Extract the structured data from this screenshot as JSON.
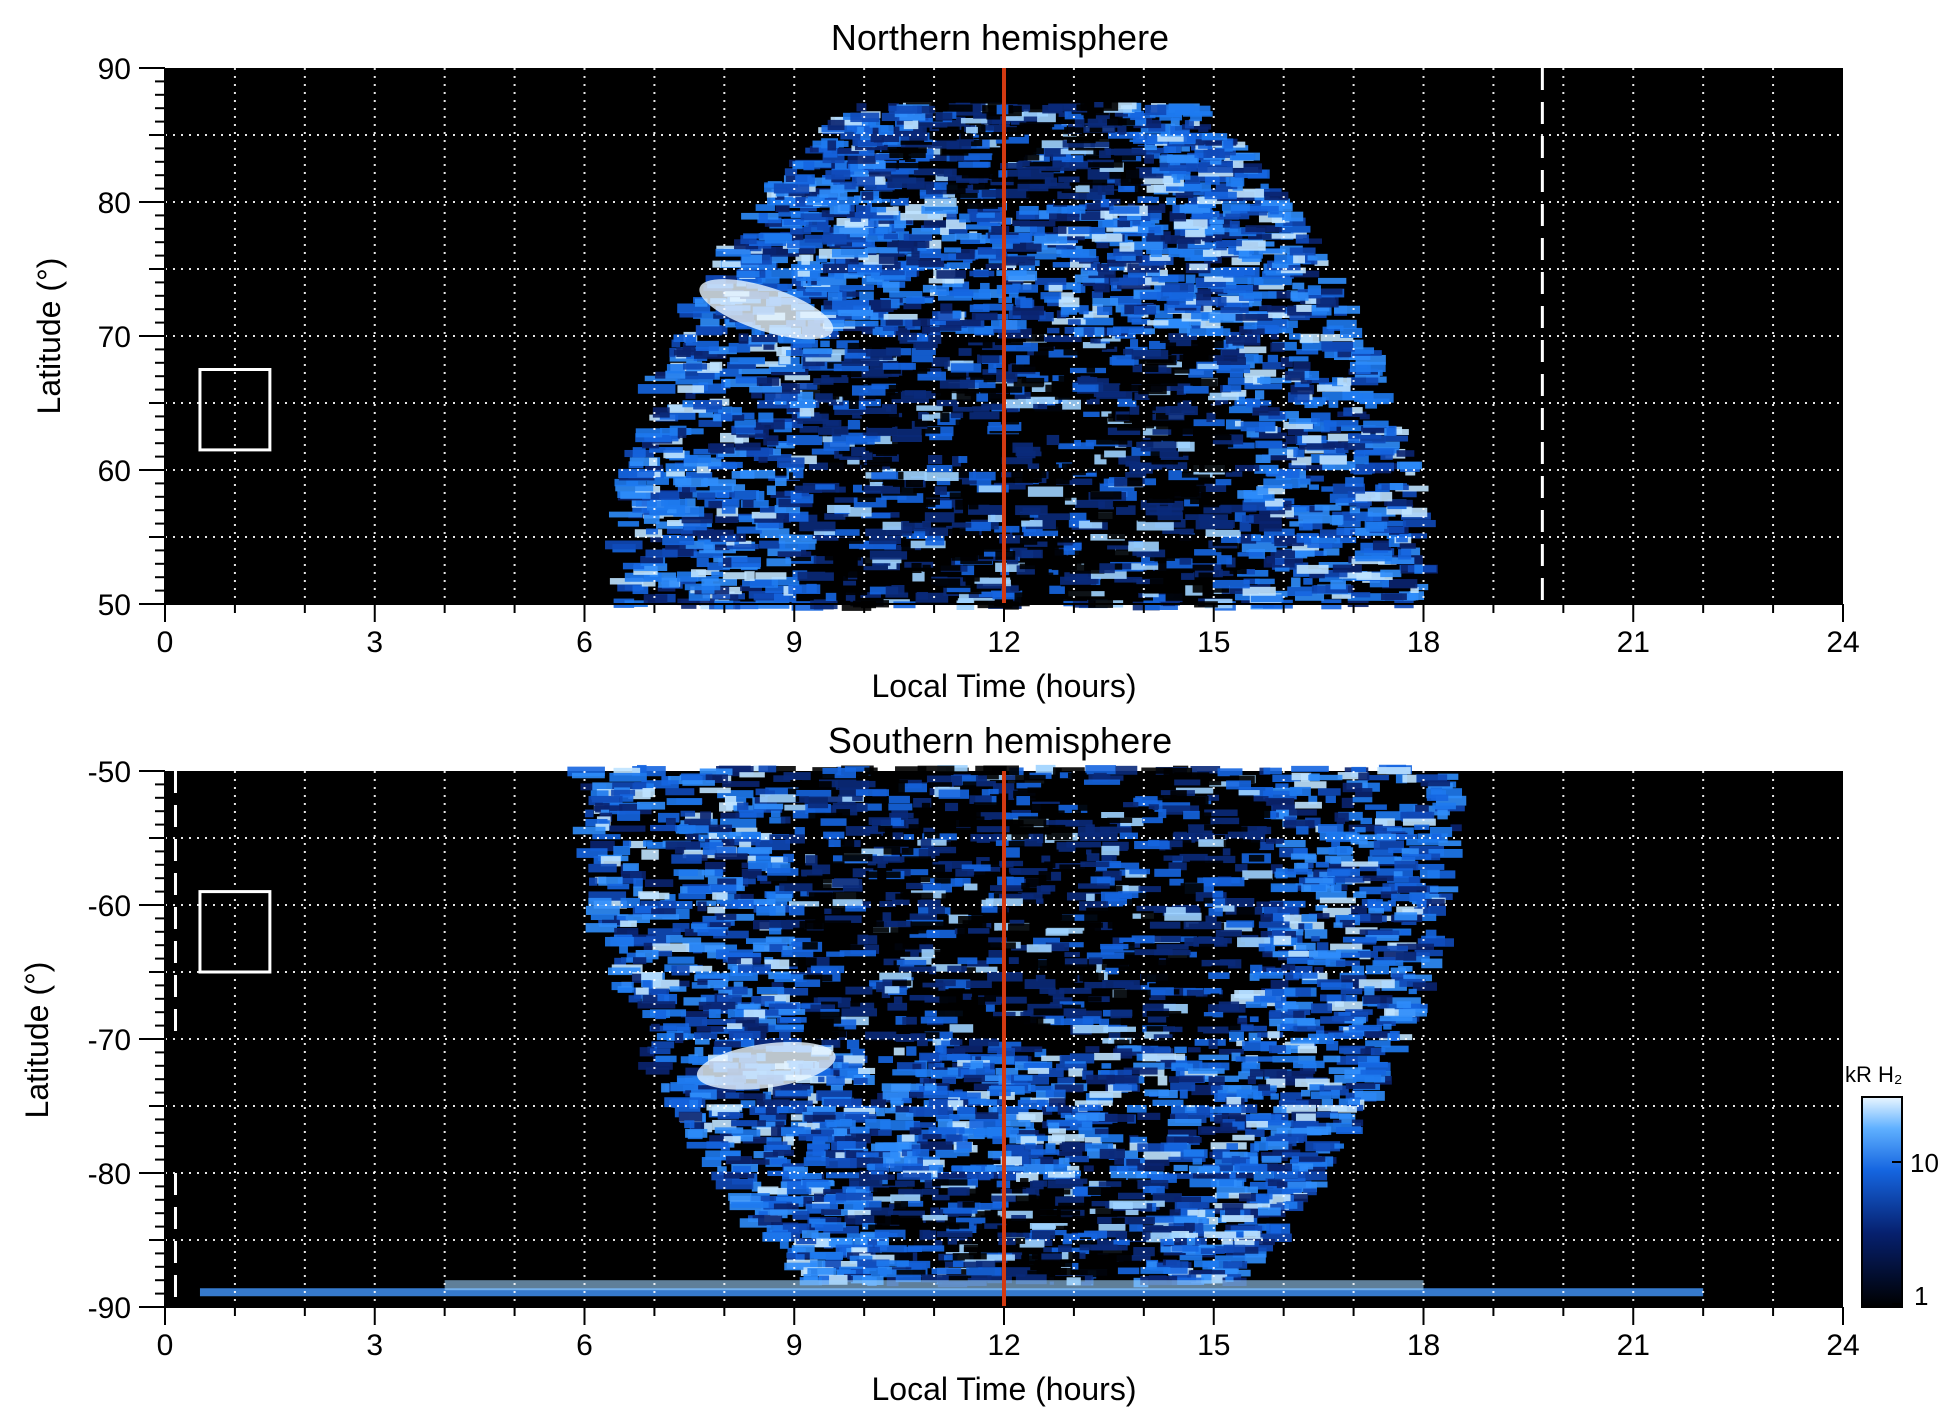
{
  "chart_data": [
    {
      "type": "heatmap",
      "title": "Northern hemisphere",
      "xlabel": "Local Time (hours)",
      "ylabel": "Latitude (°)",
      "xlim": [
        0,
        24
      ],
      "ylim": [
        50,
        90
      ],
      "xticks": [
        "0",
        "3",
        "6",
        "9",
        "12",
        "15",
        "18",
        "21",
        "24"
      ],
      "yticks": [
        "90",
        "80",
        "70",
        "60",
        "50"
      ],
      "grid": true,
      "reference_line_lt": 12,
      "dashed_line_lt": 19.7,
      "box": {
        "lt": [
          0.5,
          1.5
        ],
        "lat": [
          61.5,
          67.5
        ]
      },
      "emission_region_lt": [
        6.5,
        18
      ],
      "colors": {
        "background": "#000000",
        "emission": "#1565e0",
        "bright": "#bfe3ff",
        "reference": "#d23a12",
        "grid": "#ffffff"
      }
    },
    {
      "type": "heatmap",
      "title": "Southern hemisphere",
      "xlabel": "Local Time (hours)",
      "ylabel": "Latitude (°)",
      "xlim": [
        0,
        24
      ],
      "ylim": [
        -90,
        -50
      ],
      "xticks": [
        "0",
        "3",
        "6",
        "9",
        "12",
        "15",
        "18",
        "21",
        "24"
      ],
      "yticks": [
        "-50",
        "-60",
        "-70",
        "-80",
        "-90"
      ],
      "grid": true,
      "reference_line_lt": 12,
      "dashed_line_lt": 0.15,
      "box": {
        "lt": [
          0.5,
          1.5
        ],
        "lat": [
          -65,
          -59
        ]
      },
      "emission_region_lt": [
        6,
        18.5
      ],
      "colorbar": {
        "label": "kR H₂",
        "scale": "log",
        "ticks": [
          "10",
          "1"
        ],
        "range": [
          1,
          30
        ]
      },
      "colors": {
        "background": "#000000",
        "emission": "#1565e0",
        "bright": "#bfe3ff",
        "reference": "#d23a12",
        "grid": "#ffffff"
      }
    }
  ]
}
